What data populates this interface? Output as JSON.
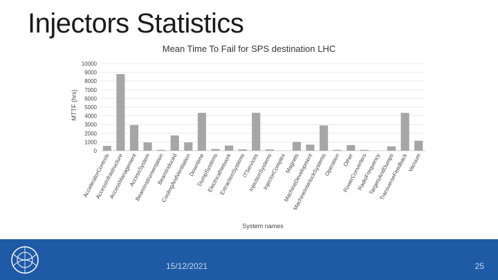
{
  "slide": {
    "title": "Injectors Statistics",
    "date": "15/12/2021",
    "page_number": "25"
  },
  "chart_data": {
    "type": "bar",
    "title": "Mean Time To Fail for SPS destination LHC",
    "xlabel": "System names",
    "ylabel": "MTTF (hrs)",
    "ylim": [
      0,
      10000
    ],
    "yticks": [
      0,
      1000,
      2000,
      3000,
      4000,
      5000,
      6000,
      7000,
      8000,
      9000,
      10000
    ],
    "grid": true,
    "bar_color": "#a6a6a6",
    "categories": [
      "AcceleratorControls",
      "AccessInfrastructure",
      "AccessManagement",
      "AccessSystem",
      "BeamInstrumentation",
      "BeamInduced",
      "CoolingAndVentilation",
      "Downtime",
      "DumpSystems",
      "ElectricalNetwork",
      "ExtractionSystems",
      "ITServices",
      "InjectionSystems",
      "InjectorComplex",
      "Magnets",
      "MachineDevelopment",
      "MachineInterlockSystems",
      "Operation",
      "Other",
      "PowerConverters",
      "RadioFrequency",
      "TargetsAndDumps",
      "TransverseFeedback",
      "Vacuum"
    ],
    "values": [
      550,
      8800,
      2950,
      950,
      100,
      1750,
      950,
      4350,
      200,
      600,
      150,
      4350,
      150,
      0,
      1000,
      700,
      2900,
      100,
      650,
      100,
      0,
      500,
      4350,
      1150
    ]
  }
}
